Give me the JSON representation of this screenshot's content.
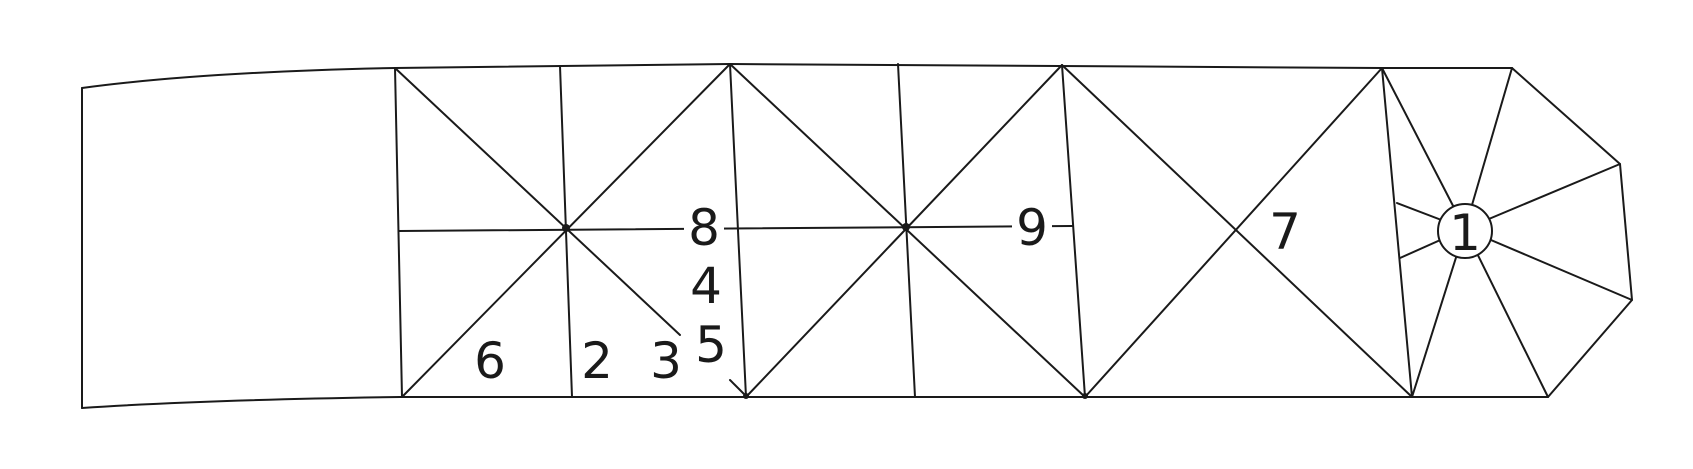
{
  "labels": {
    "n1": "1",
    "n2": "2",
    "n3": "3",
    "n4": "4",
    "n5": "5",
    "n6": "6",
    "n7": "7",
    "n8": "8",
    "n9": "9"
  }
}
